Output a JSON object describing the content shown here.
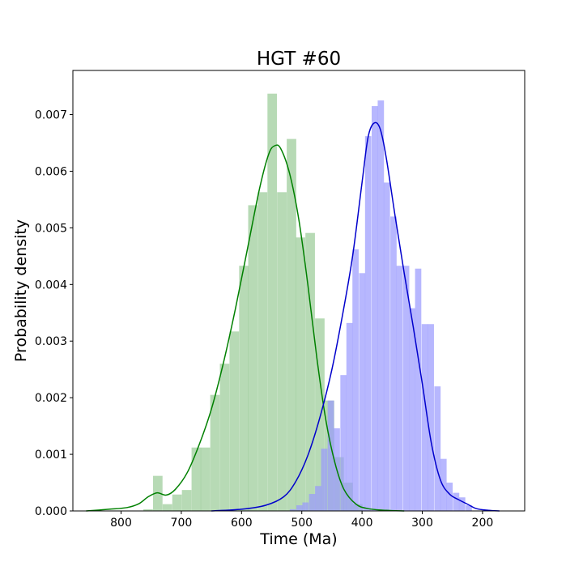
{
  "chart_data": {
    "type": "histogram-kde",
    "title": "HGT #60",
    "xlabel": "Time (Ma)",
    "ylabel": "Probability density",
    "x_reversed": true,
    "xlim": [
      880,
      130
    ],
    "ylim": [
      0,
      0.00778
    ],
    "xticks": [
      800,
      700,
      600,
      500,
      400,
      300,
      200
    ],
    "yticks": [
      0.0,
      0.001,
      0.002,
      0.003,
      0.004,
      0.005,
      0.006,
      0.007
    ],
    "ytick_labels": [
      "0.000",
      "0.001",
      "0.002",
      "0.003",
      "0.004",
      "0.005",
      "0.006",
      "0.007"
    ],
    "legend": "none",
    "series": [
      {
        "color": "#008000",
        "bar_color": "#98cb96",
        "bin_width": 15.8,
        "bins": [
          {
            "x0": 763,
            "y": 3e-05
          },
          {
            "x0": 747,
            "y": 0.00062
          },
          {
            "x0": 731,
            "y": 0.00012
          },
          {
            "x0": 715,
            "y": 0.00029
          },
          {
            "x0": 699,
            "y": 0.00037
          },
          {
            "x0": 683,
            "y": 0.00112
          },
          {
            "x0": 668,
            "y": 0.00112
          },
          {
            "x0": 652,
            "y": 0.00205
          },
          {
            "x0": 636,
            "y": 0.0026
          },
          {
            "x0": 620,
            "y": 0.00317
          },
          {
            "x0": 604,
            "y": 0.00433
          },
          {
            "x0": 589,
            "y": 0.0054
          },
          {
            "x0": 573,
            "y": 0.00563
          },
          {
            "x0": 557,
            "y": 0.00737
          },
          {
            "x0": 541,
            "y": 0.00563
          },
          {
            "x0": 525,
            "y": 0.00657
          },
          {
            "x0": 510,
            "y": 0.00483
          },
          {
            "x0": 494,
            "y": 0.00491
          },
          {
            "x0": 478,
            "y": 0.0034
          },
          {
            "x0": 462,
            "y": 0.00195
          },
          {
            "x0": 446,
            "y": 0.00095
          },
          {
            "x0": 431,
            "y": 0.0005
          },
          {
            "x0": 415,
            "y": 0.00012
          }
        ],
        "kde": [
          [
            858,
            0.0
          ],
          [
            820,
            3e-05
          ],
          [
            790,
            6e-05
          ],
          [
            770,
            0.00013
          ],
          [
            755,
            0.00025
          ],
          [
            740,
            0.00032
          ],
          [
            725,
            0.00028
          ],
          [
            710,
            0.00038
          ],
          [
            690,
            0.00068
          ],
          [
            670,
            0.00118
          ],
          [
            650,
            0.0018
          ],
          [
            630,
            0.00262
          ],
          [
            610,
            0.00358
          ],
          [
            590,
            0.00464
          ],
          [
            570,
            0.0057
          ],
          [
            555,
            0.0063
          ],
          [
            545,
            0.00645
          ],
          [
            535,
            0.0064
          ],
          [
            520,
            0.00595
          ],
          [
            505,
            0.00515
          ],
          [
            490,
            0.004
          ],
          [
            475,
            0.0027
          ],
          [
            460,
            0.0016
          ],
          [
            445,
            0.00085
          ],
          [
            430,
            0.00038
          ],
          [
            410,
            0.00012
          ],
          [
            390,
            4e-05
          ],
          [
            360,
            1e-05
          ],
          [
            330,
            0.0
          ]
        ]
      },
      {
        "color": "#0000cc",
        "bar_color": "#9999fd",
        "bin_width": 10.4,
        "bins": [
          {
            "x0": 520,
            "y": 3e-05
          },
          {
            "x0": 509,
            "y": 0.0001
          },
          {
            "x0": 499,
            "y": 0.00015
          },
          {
            "x0": 488,
            "y": 0.0003
          },
          {
            "x0": 478,
            "y": 0.00044
          },
          {
            "x0": 468,
            "y": 0.0011
          },
          {
            "x0": 457,
            "y": 0.00195
          },
          {
            "x0": 447,
            "y": 0.00146
          },
          {
            "x0": 436,
            "y": 0.0024
          },
          {
            "x0": 426,
            "y": 0.00332
          },
          {
            "x0": 416,
            "y": 0.00462
          },
          {
            "x0": 405,
            "y": 0.0042
          },
          {
            "x0": 395,
            "y": 0.00662
          },
          {
            "x0": 384,
            "y": 0.00715
          },
          {
            "x0": 374,
            "y": 0.00725
          },
          {
            "x0": 364,
            "y": 0.0058
          },
          {
            "x0": 353,
            "y": 0.0052
          },
          {
            "x0": 343,
            "y": 0.00433
          },
          {
            "x0": 332,
            "y": 0.00433
          },
          {
            "x0": 322,
            "y": 0.00358
          },
          {
            "x0": 312,
            "y": 0.00428
          },
          {
            "x0": 301,
            "y": 0.0033
          },
          {
            "x0": 291,
            "y": 0.0033
          },
          {
            "x0": 280,
            "y": 0.0022
          },
          {
            "x0": 270,
            "y": 0.00092
          },
          {
            "x0": 260,
            "y": 0.0005
          },
          {
            "x0": 249,
            "y": 0.00032
          },
          {
            "x0": 239,
            "y": 0.00024
          },
          {
            "x0": 228,
            "y": 0.0001
          }
        ],
        "kde": [
          [
            650,
            0.0
          ],
          [
            600,
            3e-05
          ],
          [
            560,
            0.0001
          ],
          [
            530,
            0.00025
          ],
          [
            510,
            0.00052
          ],
          [
            490,
            0.00098
          ],
          [
            470,
            0.00165
          ],
          [
            450,
            0.0025
          ],
          [
            430,
            0.0036
          ],
          [
            415,
            0.00455
          ],
          [
            400,
            0.0058
          ],
          [
            390,
            0.0066
          ],
          [
            380,
            0.00685
          ],
          [
            370,
            0.00675
          ],
          [
            360,
            0.00625
          ],
          [
            345,
            0.0052
          ],
          [
            330,
            0.0042
          ],
          [
            315,
            0.00325
          ],
          [
            300,
            0.00225
          ],
          [
            285,
            0.0012
          ],
          [
            270,
            0.00055
          ],
          [
            255,
            0.0003
          ],
          [
            240,
            0.0002
          ],
          [
            225,
            0.00012
          ],
          [
            210,
            4e-05
          ],
          [
            190,
            1e-05
          ],
          [
            172,
            0.0
          ]
        ]
      }
    ]
  }
}
